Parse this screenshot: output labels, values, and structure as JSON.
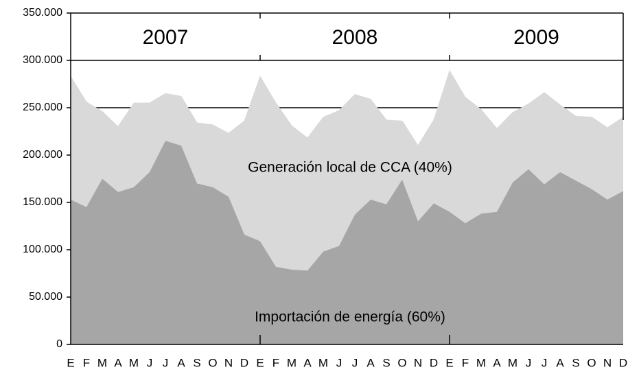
{
  "chart_data": {
    "type": "stacked_area",
    "categories": [
      "E",
      "F",
      "M",
      "A",
      "M",
      "J",
      "J",
      "A",
      "S",
      "O",
      "N",
      "D",
      "E",
      "F",
      "M",
      "A",
      "M",
      "J",
      "J",
      "A",
      "S",
      "O",
      "N",
      "D",
      "E",
      "F",
      "M",
      "A",
      "M",
      "J",
      "J",
      "A",
      "S",
      "O",
      "N",
      "D"
    ],
    "year_labels": [
      "2007",
      "2008",
      "2009"
    ],
    "series": [
      {
        "name": "Importación de energía (60%)",
        "color": "#a6a6a6",
        "values": [
          153000,
          145000,
          175000,
          161000,
          166000,
          182000,
          215000,
          210000,
          170000,
          166000,
          156000,
          116000,
          109000,
          82000,
          79000,
          78000,
          98000,
          104000,
          137000,
          153000,
          148000,
          174000,
          130000,
          149000,
          140000,
          128000,
          138000,
          140000,
          171000,
          185000,
          169000,
          182000,
          173000,
          164000,
          153000,
          162000
        ]
      },
      {
        "name": "Generación local de CCA (40%)",
        "color": "#d9d9d9",
        "values": [
          130000,
          111000,
          71000,
          69000,
          89000,
          73000,
          50000,
          52000,
          64000,
          66000,
          67000,
          120000,
          174000,
          173000,
          152000,
          140000,
          142000,
          143000,
          127000,
          106000,
          89000,
          62000,
          80000,
          88000,
          149000,
          133000,
          110000,
          88000,
          74000,
          69000,
          97000,
          71000,
          68000,
          76000,
          76000,
          78000
        ]
      }
    ],
    "ylim": [
      0,
      350000
    ],
    "yticks": [
      {
        "value": 0,
        "label": "0"
      },
      {
        "value": 50000,
        "label": "50.000"
      },
      {
        "value": 100000,
        "label": "100.000"
      },
      {
        "value": 150000,
        "label": "150.000"
      },
      {
        "value": 200000,
        "label": "200.000"
      },
      {
        "value": 250000,
        "label": "250.000"
      },
      {
        "value": 300000,
        "label": "300.000"
      },
      {
        "value": 350000,
        "label": "350.000"
      }
    ],
    "grid_values": [
      {
        "value": 250000,
        "label": "250.000"
      },
      {
        "value": 300000,
        "label": "300.000"
      }
    ]
  }
}
